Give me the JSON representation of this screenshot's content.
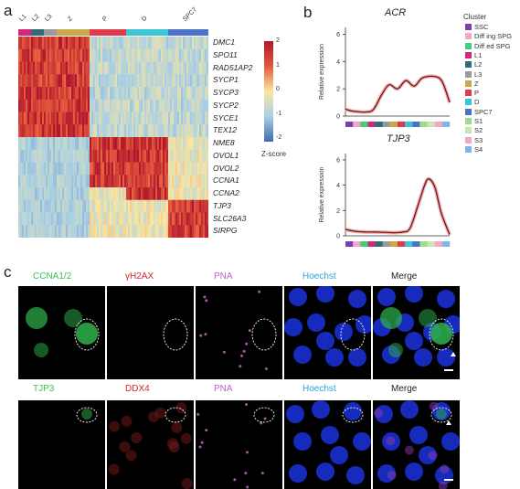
{
  "panels": {
    "a": "a",
    "b": "b",
    "c": "c"
  },
  "heatmap": {
    "cluster_labels": [
      "L1",
      "L2",
      "L3",
      "Z",
      "P",
      "D",
      "SPC7"
    ],
    "cluster_colors": [
      "#d6287a",
      "#2f6b7a",
      "#9a9a9a",
      "#c9a94a",
      "#e23c4c",
      "#3bc6d6",
      "#4a73c9"
    ],
    "genes": [
      "DMC1",
      "SPO11",
      "RAD51AP2",
      "SYCP1",
      "SYCP3",
      "SYCP2",
      "SYCE1",
      "TEX12",
      "NME8",
      "OVOL1",
      "OVOL2",
      "CCNA1",
      "CCNA2",
      "TJP3",
      "SLC26A3",
      "SIRPG"
    ],
    "scale_ticks": [
      "2",
      "1",
      "0",
      "-1",
      "-2"
    ],
    "scale_label": "Z-score"
  },
  "line_plots": [
    {
      "title": "ACR",
      "ylabel": "Relative expression",
      "yticks": [
        "6",
        "4",
        "2",
        "0"
      ],
      "ylim": [
        0,
        6.5
      ],
      "curve": [
        [
          0,
          0.5
        ],
        [
          0.08,
          0.35
        ],
        [
          0.2,
          0.3
        ],
        [
          0.27,
          0.5
        ],
        [
          0.35,
          1.6
        ],
        [
          0.42,
          2.3
        ],
        [
          0.5,
          2.0
        ],
        [
          0.58,
          2.6
        ],
        [
          0.66,
          2.2
        ],
        [
          0.74,
          2.8
        ],
        [
          0.86,
          2.9
        ],
        [
          0.93,
          2.5
        ],
        [
          1.0,
          1.0
        ]
      ]
    },
    {
      "title": "TJP3",
      "ylabel": "Relative expression",
      "yticks": [
        "6",
        "4",
        "2",
        "0"
      ],
      "ylim": [
        0,
        6.5
      ],
      "curve": [
        [
          0,
          0.5
        ],
        [
          0.1,
          0.35
        ],
        [
          0.2,
          0.3
        ],
        [
          0.3,
          0.3
        ],
        [
          0.45,
          0.25
        ],
        [
          0.55,
          0.3
        ],
        [
          0.62,
          0.6
        ],
        [
          0.7,
          2.5
        ],
        [
          0.76,
          4.0
        ],
        [
          0.8,
          4.5
        ],
        [
          0.86,
          3.8
        ],
        [
          0.92,
          1.8
        ],
        [
          1.0,
          0.1
        ]
      ]
    }
  ],
  "legend": {
    "title": "Cluster",
    "items": [
      {
        "label": "SSC",
        "color": "#7b3fa8"
      },
      {
        "label": "Diff ing SPG",
        "color": "#f3a6c8"
      },
      {
        "label": "Diff ed SPG",
        "color": "#3fd07a"
      },
      {
        "label": "L1",
        "color": "#d6287a"
      },
      {
        "label": "L2",
        "color": "#2f6b7a"
      },
      {
        "label": "L3",
        "color": "#9a9a9a"
      },
      {
        "label": "Z",
        "color": "#c9a94a"
      },
      {
        "label": "P",
        "color": "#e23c4c"
      },
      {
        "label": "D",
        "color": "#3bc6d6"
      },
      {
        "label": "SPC7",
        "color": "#4a73c9"
      },
      {
        "label": "S1",
        "color": "#9edc8c"
      },
      {
        "label": "S2",
        "color": "#c8e7b0"
      },
      {
        "label": "S3",
        "color": "#f3a6c8"
      },
      {
        "label": "S4",
        "color": "#7fb6e8"
      }
    ]
  },
  "micrographs": {
    "row1": [
      {
        "label": "CCNA1/2",
        "color": "#39c44a"
      },
      {
        "label": "γH2AX",
        "color": "#d8282c"
      },
      {
        "label": "PNA",
        "color": "#c25bd0"
      },
      {
        "label": "Hoechst",
        "color": "#2aa6d8"
      },
      {
        "label": "Merge",
        "color": "#222222"
      }
    ],
    "row2": [
      {
        "label": "TJP3",
        "color": "#39c44a"
      },
      {
        "label": "DDX4",
        "color": "#d8282c"
      },
      {
        "label": "PNA",
        "color": "#c25bd0"
      },
      {
        "label": "Hoechst",
        "color": "#2aa6d8"
      },
      {
        "label": "Merge",
        "color": "#222222"
      }
    ]
  }
}
